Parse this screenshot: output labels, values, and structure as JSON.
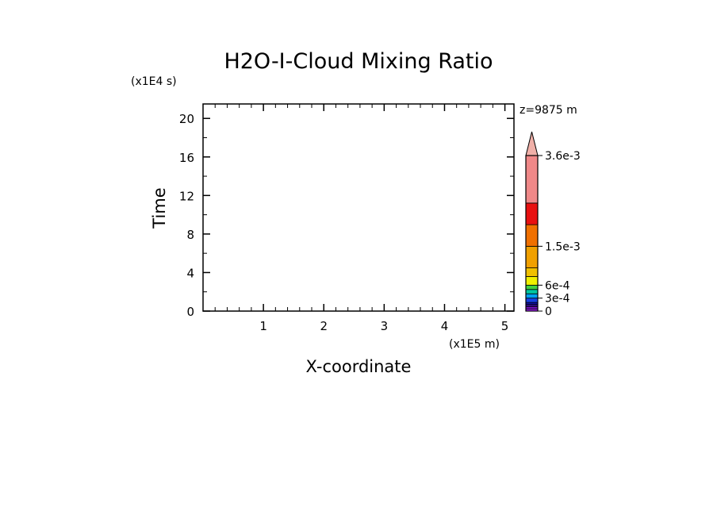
{
  "chart_data": {
    "type": "heatmap",
    "title": "H2O-I-Cloud Mixing Ratio",
    "xlabel": "X-coordinate",
    "ylabel": "Time",
    "x_scale_label": "(x1E5 m)",
    "y_scale_label": "(x1E4 s)",
    "annotation": "z=9875 m",
    "xlim": [
      0,
      5.15
    ],
    "ylim": [
      0,
      21.5
    ],
    "x_ticks": [
      1,
      2,
      3,
      4,
      5
    ],
    "y_ticks": [
      0,
      4,
      8,
      12,
      16,
      20
    ],
    "x_tick_labels": [
      "1",
      "2",
      "3",
      "4",
      "5"
    ],
    "y_tick_labels": [
      "0",
      "4",
      "8",
      "12",
      "16",
      "20"
    ],
    "data": [],
    "colorbar": {
      "levels": [
        0,
        5e-05,
        0.0001,
        0.00015,
        0.0002,
        0.0003,
        0.0004,
        0.0005,
        0.0006,
        0.0008,
        0.001,
        0.0015,
        0.002,
        0.0025,
        0.0036
      ],
      "colors": [
        "#a020f0",
        "#7a10c8",
        "#3a1090",
        "#1010a0",
        "#1840e0",
        "#00a0f0",
        "#00c8a0",
        "#40d040",
        "#f0f000",
        "#f0c000",
        "#f0a000",
        "#f07000",
        "#e81010",
        "#f08888"
      ],
      "extend_color": "#f0b0a8",
      "tick_values": [
        0,
        0.0003,
        0.0006,
        0.0015,
        0.0036
      ],
      "tick_labels": [
        "0",
        "3e-4",
        "6e-4",
        "1.5e-3",
        "3.6e-3"
      ]
    }
  }
}
